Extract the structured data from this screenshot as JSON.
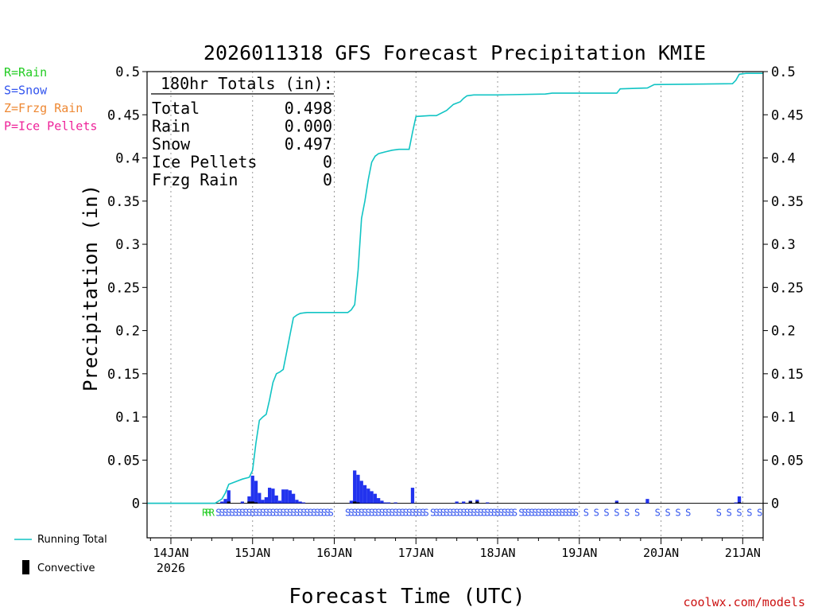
{
  "chart_data": {
    "type": "bar",
    "title": "2026011318 GFS Forecast Precipitation KMIE",
    "xlabel": "Forecast Time (UTC)",
    "ylabel": "Precipitation (in)",
    "ylim": [
      -0.04,
      0.5
    ],
    "xlim_hours": [
      -7,
      174
    ],
    "grid": true,
    "y_ticks": [
      {
        "v": 0,
        "label": "0"
      },
      {
        "v": 0.05,
        "label": "0.05"
      },
      {
        "v": 0.1,
        "label": "0.1"
      },
      {
        "v": 0.15,
        "label": "0.15"
      },
      {
        "v": 0.2,
        "label": "0.2"
      },
      {
        "v": 0.25,
        "label": "0.25"
      },
      {
        "v": 0.3,
        "label": "0.3"
      },
      {
        "v": 0.35,
        "label": "0.35"
      },
      {
        "v": 0.4,
        "label": "0.4"
      },
      {
        "v": 0.45,
        "label": "0.45"
      },
      {
        "v": 0.5,
        "label": "0.5"
      }
    ],
    "x_ticks": [
      {
        "h": 0,
        "label": "14JAN",
        "sub": "2026"
      },
      {
        "h": 24,
        "label": "15JAN"
      },
      {
        "h": 48,
        "label": "16JAN"
      },
      {
        "h": 72,
        "label": "17JAN"
      },
      {
        "h": 96,
        "label": "18JAN"
      },
      {
        "h": 120,
        "label": "19JAN"
      },
      {
        "h": 144,
        "label": "20JAN"
      },
      {
        "h": 168,
        "label": "21JAN"
      }
    ],
    "precip_type_legend": [
      {
        "code": "R",
        "text": "R=Rain",
        "color": "#22cc22"
      },
      {
        "code": "S",
        "text": "S=Snow",
        "color": "#3355ee"
      },
      {
        "code": "Z",
        "text": "Z=Frzg Rain",
        "color": "#ee8833"
      },
      {
        "code": "P",
        "text": "P=Ice Pellets",
        "color": "#ee2299"
      }
    ],
    "totals_box": {
      "header": "180hr Totals (in):",
      "rows": [
        {
          "label": "Total",
          "value": "0.498"
        },
        {
          "label": "Rain",
          "value": "0.000"
        },
        {
          "label": "Snow",
          "value": "0.497"
        },
        {
          "label": "Ice Pellets",
          "value": "0"
        },
        {
          "label": "Frzg Rain",
          "value": "0"
        }
      ]
    },
    "series": [
      {
        "name": "Running Total",
        "color": "#11c4c4",
        "points": [
          [
            -7,
            0
          ],
          [
            13,
            0
          ],
          [
            15,
            0.005
          ],
          [
            16,
            0.012
          ],
          [
            17,
            0.022
          ],
          [
            19,
            0.025
          ],
          [
            21,
            0.028
          ],
          [
            23,
            0.03
          ],
          [
            24,
            0.038
          ],
          [
            25,
            0.07
          ],
          [
            26,
            0.096
          ],
          [
            27,
            0.1
          ],
          [
            28,
            0.103
          ],
          [
            29,
            0.12
          ],
          [
            30,
            0.14
          ],
          [
            31,
            0.15
          ],
          [
            32,
            0.152
          ],
          [
            33,
            0.155
          ],
          [
            34,
            0.175
          ],
          [
            35,
            0.195
          ],
          [
            36,
            0.215
          ],
          [
            37,
            0.218
          ],
          [
            38,
            0.22
          ],
          [
            40,
            0.221
          ],
          [
            48,
            0.221
          ],
          [
            52,
            0.221
          ],
          [
            53,
            0.224
          ],
          [
            54,
            0.23
          ],
          [
            55,
            0.27
          ],
          [
            56,
            0.33
          ],
          [
            57,
            0.35
          ],
          [
            58,
            0.375
          ],
          [
            59,
            0.395
          ],
          [
            60,
            0.402
          ],
          [
            61,
            0.405
          ],
          [
            63,
            0.407
          ],
          [
            65,
            0.409
          ],
          [
            67,
            0.41
          ],
          [
            70,
            0.41
          ],
          [
            71,
            0.43
          ],
          [
            72,
            0.448
          ],
          [
            76,
            0.449
          ],
          [
            78,
            0.449
          ],
          [
            81,
            0.455
          ],
          [
            83,
            0.462
          ],
          [
            85,
            0.465
          ],
          [
            86,
            0.469
          ],
          [
            87,
            0.472
          ],
          [
            89,
            0.473
          ],
          [
            96,
            0.473
          ],
          [
            110,
            0.474
          ],
          [
            112,
            0.475
          ],
          [
            131,
            0.475
          ],
          [
            132,
            0.48
          ],
          [
            140,
            0.481
          ],
          [
            142,
            0.485
          ],
          [
            165,
            0.486
          ],
          [
            166,
            0.49
          ],
          [
            167,
            0.497
          ],
          [
            169,
            0.498
          ],
          [
            174,
            0.498
          ]
        ]
      },
      {
        "name": "Snow",
        "color": "#2233ee",
        "bars": [
          [
            15,
            0.002
          ],
          [
            16,
            0.005
          ],
          [
            17,
            0.015
          ],
          [
            21,
            0.002
          ],
          [
            23,
            0.008
          ],
          [
            24,
            0.032
          ],
          [
            25,
            0.026
          ],
          [
            26,
            0.012
          ],
          [
            27,
            0.004
          ],
          [
            28,
            0.007
          ],
          [
            29,
            0.018
          ],
          [
            30,
            0.017
          ],
          [
            31,
            0.009
          ],
          [
            32,
            0.003
          ],
          [
            33,
            0.016
          ],
          [
            34,
            0.016
          ],
          [
            35,
            0.015
          ],
          [
            36,
            0.011
          ],
          [
            37,
            0.004
          ],
          [
            38,
            0.002
          ],
          [
            39,
            0.001
          ],
          [
            53,
            0.003
          ],
          [
            54,
            0.038
          ],
          [
            55,
            0.033
          ],
          [
            56,
            0.026
          ],
          [
            57,
            0.021
          ],
          [
            58,
            0.017
          ],
          [
            59,
            0.014
          ],
          [
            60,
            0.011
          ],
          [
            61,
            0.006
          ],
          [
            62,
            0.003
          ],
          [
            63,
            0.001
          ],
          [
            64,
            0.001
          ],
          [
            66,
            0.001
          ],
          [
            71,
            0.018
          ],
          [
            84,
            0.002
          ],
          [
            86,
            0.002
          ],
          [
            88,
            0.003
          ],
          [
            90,
            0.004
          ],
          [
            93,
            0.001
          ],
          [
            131,
            0.003
          ],
          [
            140,
            0.005
          ],
          [
            166,
            0.001
          ],
          [
            167,
            0.008
          ]
        ]
      },
      {
        "name": "Convective",
        "color": "#000000",
        "bars": [
          [
            17,
            0.002
          ],
          [
            23,
            0.002
          ],
          [
            24,
            0.002
          ],
          [
            25,
            0.001
          ],
          [
            54,
            0.002
          ],
          [
            55,
            0.001
          ],
          [
            88,
            0.002
          ],
          [
            90,
            0.002
          ],
          [
            131,
            0.001
          ],
          [
            167,
            0.001
          ]
        ]
      }
    ],
    "precip_type_markers": {
      "S_start_end": [
        [
          14,
          47
        ],
        [
          52,
          75
        ],
        [
          77,
          101
        ],
        [
          103,
          119
        ]
      ],
      "S_sparse": [
        122,
        125,
        128,
        131,
        134,
        137,
        143,
        146,
        149,
        152,
        161,
        164,
        167,
        170,
        173
      ],
      "R": [
        10,
        11,
        12
      ]
    },
    "series_legend": [
      {
        "name": "Running Total",
        "color": "#11c4c4"
      },
      {
        "name": "Convective",
        "color": "#000000"
      }
    ],
    "credit": "coolwx.com/models"
  }
}
